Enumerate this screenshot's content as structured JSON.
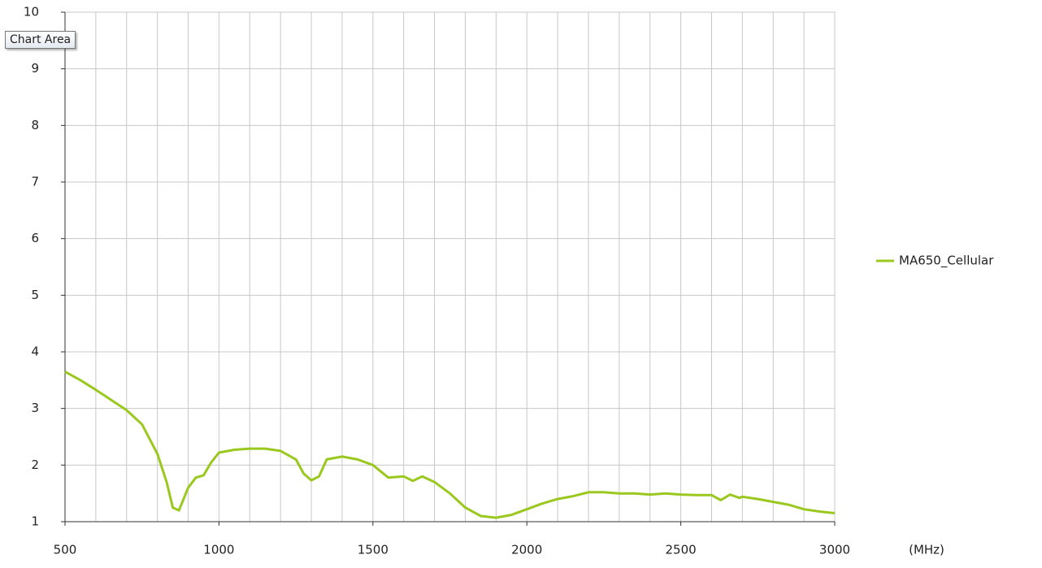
{
  "chart_data": {
    "type": "line",
    "x_unit": "(MHz)",
    "tooltip": "Chart Area",
    "x": [
      500,
      550,
      600,
      650,
      700,
      750,
      800,
      830,
      850,
      870,
      900,
      925,
      950,
      975,
      1000,
      1050,
      1100,
      1150,
      1200,
      1250,
      1275,
      1300,
      1325,
      1350,
      1400,
      1450,
      1500,
      1550,
      1600,
      1630,
      1660,
      1700,
      1750,
      1800,
      1850,
      1900,
      1950,
      2000,
      2050,
      2100,
      2150,
      2200,
      2250,
      2300,
      2350,
      2400,
      2450,
      2500,
      2550,
      2600,
      2630,
      2660,
      2690,
      2700,
      2750,
      2800,
      2850,
      2900,
      2950,
      3000
    ],
    "series": [
      {
        "name": "MA650_Cellular",
        "color": "#9ac81e",
        "values": [
          3.65,
          3.5,
          3.33,
          3.15,
          2.97,
          2.72,
          2.2,
          1.7,
          1.25,
          1.2,
          1.6,
          1.78,
          1.82,
          2.05,
          2.22,
          2.27,
          2.29,
          2.29,
          2.25,
          2.1,
          1.85,
          1.73,
          1.8,
          2.1,
          2.15,
          2.1,
          2.0,
          1.78,
          1.8,
          1.72,
          1.8,
          1.7,
          1.5,
          1.25,
          1.1,
          1.07,
          1.12,
          1.22,
          1.32,
          1.4,
          1.45,
          1.52,
          1.52,
          1.5,
          1.5,
          1.48,
          1.5,
          1.48,
          1.47,
          1.47,
          1.38,
          1.48,
          1.42,
          1.44,
          1.4,
          1.35,
          1.3,
          1.22,
          1.18,
          1.15
        ]
      }
    ],
    "xlim": [
      500,
      3000
    ],
    "xticks": [
      500,
      1000,
      1500,
      2000,
      2500,
      3000
    ],
    "xgrid": [
      500,
      600,
      700,
      800,
      900,
      1000,
      1100,
      1200,
      1300,
      1400,
      1500,
      1600,
      1700,
      1800,
      1900,
      2000,
      2100,
      2200,
      2300,
      2400,
      2500,
      2600,
      2700,
      2800,
      2900,
      3000
    ],
    "ylim": [
      1,
      10
    ],
    "yticks": [
      1,
      2,
      3,
      4,
      5,
      6,
      7,
      8,
      9,
      10
    ],
    "grid": true,
    "legend": "right"
  }
}
